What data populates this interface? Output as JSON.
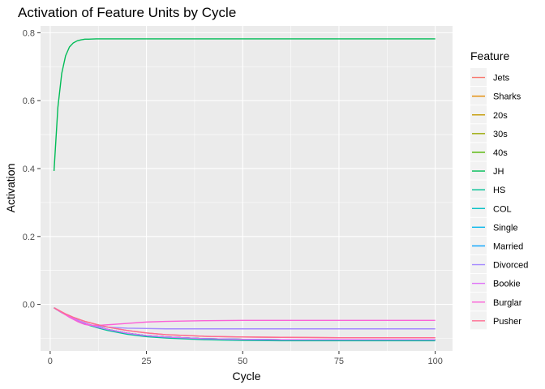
{
  "chart_data": {
    "type": "line",
    "title": "Activation of Feature Units by Cycle",
    "xlabel": "Cycle",
    "ylabel": "Activation",
    "xlim": [
      -2.5,
      104.5
    ],
    "ylim": [
      -0.137,
      0.82
    ],
    "x_ticks": [
      0,
      25,
      50,
      75,
      100
    ],
    "y_ticks": [
      0.0,
      0.2,
      0.4,
      0.6,
      0.8
    ],
    "x_tick_labels": [
      "0",
      "25",
      "50",
      "75",
      "100"
    ],
    "y_tick_labels": [
      "0.0",
      "0.2",
      "0.4",
      "0.6",
      "0.8"
    ],
    "grid": true,
    "legend": {
      "title": "Feature",
      "position": "right"
    },
    "x": [
      1,
      2,
      3,
      4,
      5,
      6,
      7,
      8,
      9,
      10,
      12,
      15,
      20,
      25,
      30,
      40,
      50,
      60,
      75,
      100
    ],
    "series": [
      {
        "name": "Jets",
        "color": "#F8766D",
        "values": [
          -0.01,
          -0.016,
          -0.022,
          -0.028,
          -0.033,
          -0.038,
          -0.042,
          -0.046,
          -0.05,
          -0.053,
          -0.059,
          -0.067,
          -0.077,
          -0.084,
          -0.089,
          -0.094,
          -0.096,
          -0.097,
          -0.098,
          -0.098
        ]
      },
      {
        "name": "Sharks",
        "color": "#E38900",
        "values": [
          -0.01,
          -0.017,
          -0.024,
          -0.03,
          -0.036,
          -0.041,
          -0.046,
          -0.051,
          -0.055,
          -0.059,
          -0.066,
          -0.074,
          -0.085,
          -0.092,
          -0.096,
          -0.101,
          -0.103,
          -0.104,
          -0.104,
          -0.104
        ]
      },
      {
        "name": "20s",
        "color": "#C49A00",
        "values": [
          -0.01,
          -0.017,
          -0.024,
          -0.03,
          -0.036,
          -0.041,
          -0.046,
          -0.051,
          -0.055,
          -0.059,
          -0.066,
          -0.074,
          -0.085,
          -0.092,
          -0.096,
          -0.101,
          -0.103,
          -0.104,
          -0.104,
          -0.104
        ]
      },
      {
        "name": "30s",
        "color": "#99A800",
        "values": [
          -0.01,
          -0.017,
          -0.024,
          -0.03,
          -0.036,
          -0.041,
          -0.046,
          -0.051,
          -0.055,
          -0.059,
          -0.066,
          -0.074,
          -0.085,
          -0.092,
          -0.096,
          -0.101,
          -0.103,
          -0.104,
          -0.104,
          -0.104
        ]
      },
      {
        "name": "40s",
        "color": "#53B400",
        "values": [
          -0.01,
          -0.017,
          -0.024,
          -0.03,
          -0.036,
          -0.041,
          -0.046,
          -0.051,
          -0.055,
          -0.059,
          -0.066,
          -0.074,
          -0.085,
          -0.092,
          -0.096,
          -0.101,
          -0.103,
          -0.104,
          -0.104,
          -0.104
        ]
      },
      {
        "name": "JH",
        "color": "#00BC56",
        "values": [
          0.393,
          0.58,
          0.68,
          0.732,
          0.758,
          0.77,
          0.776,
          0.779,
          0.781,
          0.781,
          0.782,
          0.782,
          0.782,
          0.782,
          0.782,
          0.782,
          0.782,
          0.782,
          0.782,
          0.782
        ]
      },
      {
        "name": "HS",
        "color": "#00C094",
        "values": [
          -0.01,
          -0.017,
          -0.024,
          -0.03,
          -0.036,
          -0.042,
          -0.047,
          -0.052,
          -0.057,
          -0.061,
          -0.068,
          -0.077,
          -0.088,
          -0.095,
          -0.099,
          -0.104,
          -0.106,
          -0.107,
          -0.107,
          -0.107
        ]
      },
      {
        "name": "COL",
        "color": "#00BFC4",
        "values": [
          -0.01,
          -0.017,
          -0.024,
          -0.03,
          -0.036,
          -0.041,
          -0.046,
          -0.051,
          -0.055,
          -0.059,
          -0.066,
          -0.074,
          -0.085,
          -0.092,
          -0.096,
          -0.101,
          -0.103,
          -0.104,
          -0.104,
          -0.104
        ]
      },
      {
        "name": "Single",
        "color": "#00B6EB",
        "values": [
          -0.01,
          -0.017,
          -0.024,
          -0.03,
          -0.036,
          -0.041,
          -0.046,
          -0.051,
          -0.055,
          -0.059,
          -0.066,
          -0.074,
          -0.085,
          -0.092,
          -0.096,
          -0.101,
          -0.103,
          -0.104,
          -0.104,
          -0.104
        ]
      },
      {
        "name": "Married",
        "color": "#06A4FF",
        "values": [
          -0.01,
          -0.017,
          -0.024,
          -0.03,
          -0.036,
          -0.041,
          -0.046,
          -0.051,
          -0.055,
          -0.059,
          -0.066,
          -0.074,
          -0.085,
          -0.092,
          -0.096,
          -0.101,
          -0.103,
          -0.104,
          -0.104,
          -0.104
        ]
      },
      {
        "name": "Divorced",
        "color": "#A58AFF",
        "values": [
          -0.01,
          -0.016,
          -0.023,
          -0.029,
          -0.035,
          -0.041,
          -0.046,
          -0.051,
          -0.055,
          -0.059,
          -0.064,
          -0.067,
          -0.07,
          -0.071,
          -0.072,
          -0.072,
          -0.072,
          -0.072,
          -0.072,
          -0.072
        ]
      },
      {
        "name": "Bookie",
        "color": "#DF70F8",
        "values": [
          -0.01,
          -0.017,
          -0.024,
          -0.03,
          -0.036,
          -0.041,
          -0.046,
          -0.051,
          -0.055,
          -0.059,
          -0.066,
          -0.074,
          -0.085,
          -0.092,
          -0.096,
          -0.101,
          -0.103,
          -0.104,
          -0.104,
          -0.104
        ]
      },
      {
        "name": "Burglar",
        "color": "#FB61D7",
        "values": [
          -0.01,
          -0.017,
          -0.024,
          -0.031,
          -0.038,
          -0.044,
          -0.05,
          -0.055,
          -0.059,
          -0.061,
          -0.062,
          -0.06,
          -0.056,
          -0.052,
          -0.05,
          -0.048,
          -0.047,
          -0.047,
          -0.047,
          -0.047
        ]
      },
      {
        "name": "Pusher",
        "color": "#FF6C91",
        "values": [
          -0.01,
          -0.016,
          -0.022,
          -0.028,
          -0.033,
          -0.038,
          -0.042,
          -0.046,
          -0.05,
          -0.053,
          -0.059,
          -0.067,
          -0.077,
          -0.084,
          -0.089,
          -0.094,
          -0.096,
          -0.097,
          -0.098,
          -0.098
        ]
      }
    ]
  }
}
